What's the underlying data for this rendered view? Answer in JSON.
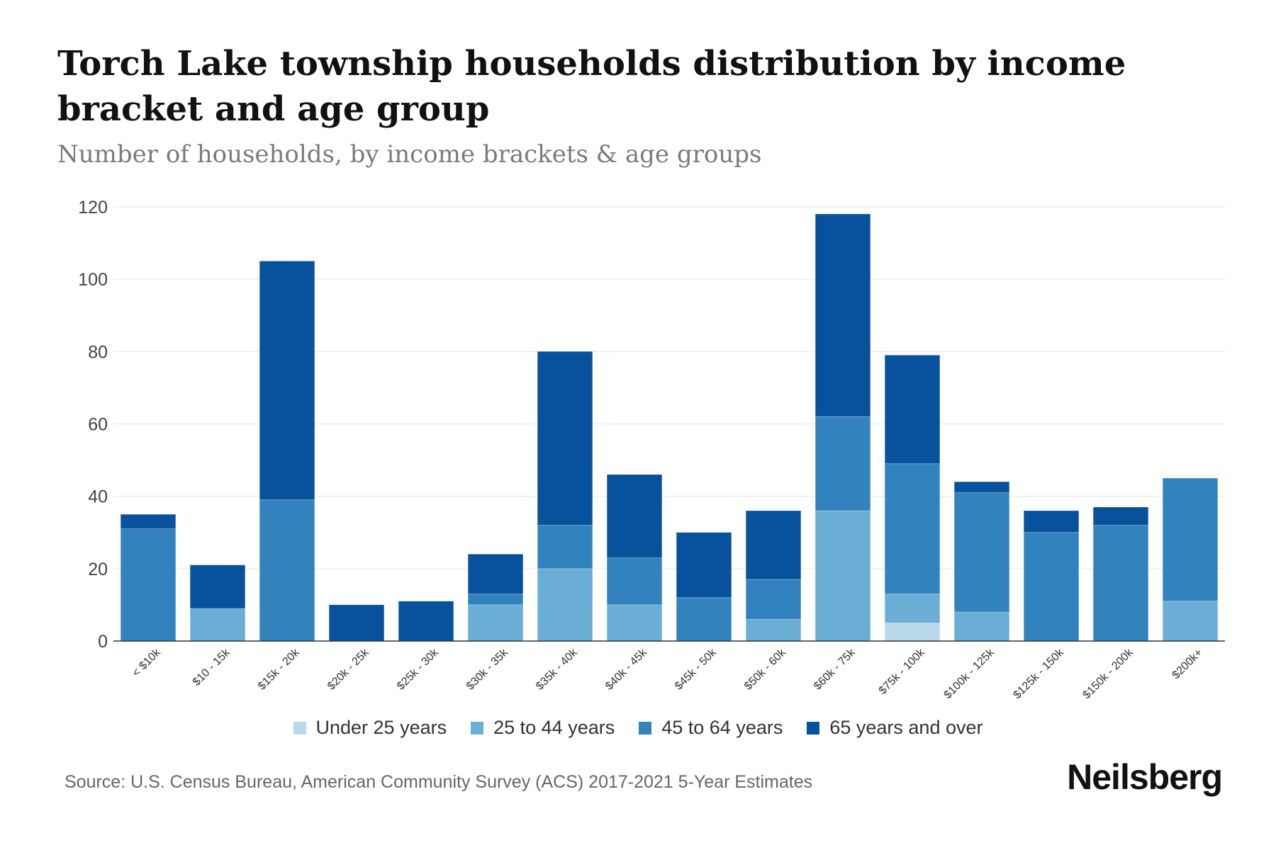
{
  "title": "Torch Lake township households distribution by income bracket and age group",
  "subtitle": "Number of households, by income brackets & age groups",
  "source": "Source: U.S. Census Bureau, American Community Survey (ACS) 2017-2021 5-Year Estimates",
  "brand": "Neilsberg",
  "chart_data": {
    "type": "bar",
    "stacked": true,
    "title": "Torch Lake township households distribution by income bracket and age group",
    "xlabel": "",
    "ylabel": "",
    "ylim": [
      0,
      120
    ],
    "yticks": [
      0,
      20,
      40,
      60,
      80,
      100,
      120
    ],
    "grid": true,
    "legend_position": "bottom",
    "categories": [
      "< $10k",
      "$10 - 15k",
      "$15k - 20k",
      "$20k - 25k",
      "$25k - 30k",
      "$30k - 35k",
      "$35k - 40k",
      "$40k - 45k",
      "$45k - 50k",
      "$50k - 60k",
      "$60k - 75k",
      "$75k - 100k",
      "$100k - 125k",
      "$125k - 150k",
      "$150k - 200k",
      "$200k+"
    ],
    "series": [
      {
        "name": "Under 25 years",
        "color": "#b9d9ea",
        "values": [
          0,
          0,
          0,
          0,
          0,
          0,
          0,
          0,
          0,
          0,
          0,
          5,
          0,
          0,
          0,
          0
        ]
      },
      {
        "name": "25 to 44 years",
        "color": "#6aadd5",
        "values": [
          0,
          9,
          0,
          0,
          0,
          10,
          20,
          10,
          0,
          6,
          36,
          8,
          8,
          0,
          0,
          11
        ]
      },
      {
        "name": "45 to 64 years",
        "color": "#3182bd",
        "values": [
          31,
          0,
          39,
          0,
          0,
          3,
          12,
          13,
          12,
          11,
          26,
          36,
          33,
          30,
          32,
          34
        ]
      },
      {
        "name": "65 years and over",
        "color": "#08519c",
        "values": [
          4,
          12,
          66,
          10,
          11,
          11,
          48,
          23,
          18,
          19,
          56,
          30,
          3,
          6,
          5,
          0
        ]
      }
    ]
  }
}
